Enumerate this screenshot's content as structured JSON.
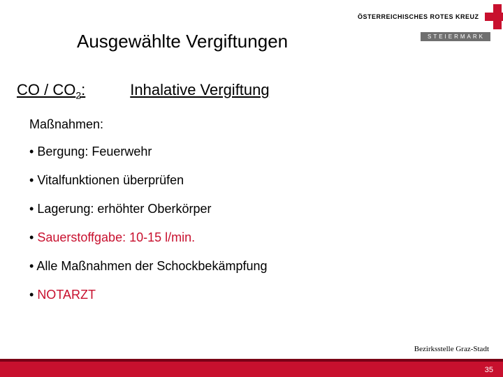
{
  "brand": {
    "org_name": "ÖSTERREICHISCHES ROTES KREUZ",
    "region": "STEIERMARK",
    "red": "#c8102e",
    "dark_red": "#7a0016",
    "grey": "#6f6f6f"
  },
  "title": "Ausgewählte Vergiftungen",
  "subhead": {
    "left_label_html": "CO / CO",
    "left_sub": "2",
    "left_colon": ":",
    "right_label": "Inhalative Vergiftung"
  },
  "section_label": "Maßnahmen:",
  "bullets": [
    {
      "text": "Bergung: Feuerwehr",
      "highlight": false
    },
    {
      "text": "Vitalfunktionen überprüfen",
      "highlight": false
    },
    {
      "text": "Lagerung: erhöhter Oberkörper",
      "highlight": false
    },
    {
      "text": "Sauerstoffgabe: 10-15 l/min.",
      "highlight": true
    },
    {
      "text": "Alle Maßnahmen der Schockbekämpfung",
      "highlight": false
    },
    {
      "text": "NOTARZT",
      "highlight": true
    }
  ],
  "footer": {
    "office": "Bezirksstelle Graz-Stadt",
    "page": "35"
  }
}
